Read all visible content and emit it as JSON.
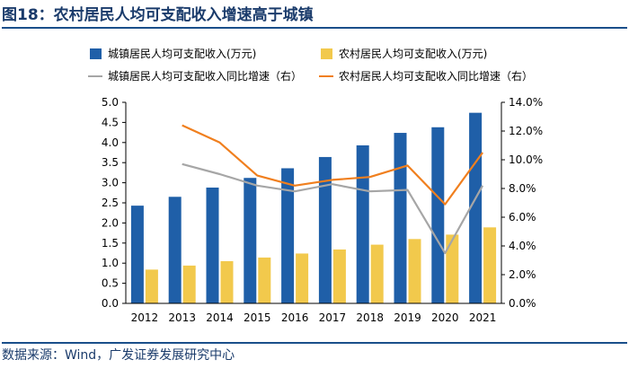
{
  "figure": {
    "title": "图18：农村居民人均可支配收入增速高于城镇",
    "source": "数据来源：Wind，广发证券发展研究中心"
  },
  "chart_data": {
    "type": "bar+line",
    "categories": [
      "2012",
      "2013",
      "2014",
      "2015",
      "2016",
      "2017",
      "2018",
      "2019",
      "2020",
      "2021"
    ],
    "left_axis": {
      "min": 0,
      "max": 5.0,
      "step": 0.5,
      "ticks": [
        "0.0",
        "0.5",
        "1.0",
        "1.5",
        "2.0",
        "2.5",
        "3.0",
        "3.5",
        "4.0",
        "4.5",
        "5.0"
      ]
    },
    "right_axis": {
      "min": 0,
      "max": 14.0,
      "step": 2.0,
      "ticks": [
        "0.0%",
        "2.0%",
        "4.0%",
        "6.0%",
        "8.0%",
        "10.0%",
        "12.0%",
        "14.0%"
      ]
    },
    "bar_series": [
      {
        "name": "城镇居民人均可支配收入(万元)",
        "color": "#1f5fa8",
        "values": [
          2.43,
          2.65,
          2.88,
          3.12,
          3.36,
          3.64,
          3.93,
          4.24,
          4.38,
          4.74
        ]
      },
      {
        "name": "农村居民人均可支配收入(万元)",
        "color": "#f2c94c",
        "values": [
          0.84,
          0.94,
          1.05,
          1.14,
          1.24,
          1.34,
          1.46,
          1.6,
          1.71,
          1.89
        ]
      }
    ],
    "line_series": [
      {
        "name": "城镇居民人均可支配收入同比增速（右）",
        "color": "#a6a6a6",
        "values": [
          null,
          9.7,
          9.0,
          8.2,
          7.8,
          8.3,
          7.8,
          7.9,
          3.5,
          8.2
        ]
      },
      {
        "name": "农村居民人均可支配收入同比增速（右）",
        "color": "#f07f1e",
        "values": [
          null,
          12.4,
          11.2,
          8.9,
          8.2,
          8.6,
          8.8,
          9.6,
          6.9,
          10.5
        ]
      }
    ],
    "grid": false,
    "legend": "top"
  }
}
